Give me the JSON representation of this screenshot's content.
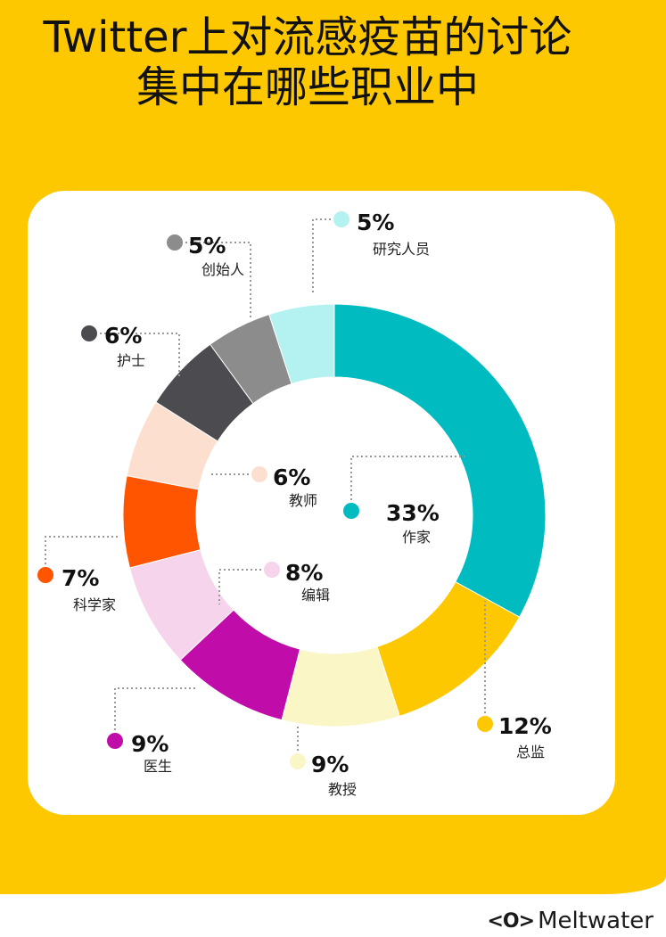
{
  "title": {
    "line1": "Twitter上对流感疫苗的讨论",
    "line2": "集中在哪些职业中"
  },
  "logo": {
    "mark": "<O>",
    "text": "Meltwater"
  },
  "chart_data": {
    "type": "donut",
    "title": "Twitter上对流感疫苗的讨论集中在哪些职业中",
    "unit": "%",
    "slices": [
      {
        "name": "作家",
        "value": 33,
        "label": "33%",
        "color": "#00bcc0"
      },
      {
        "name": "总监",
        "value": 12,
        "label": "12%",
        "color": "#fec800"
      },
      {
        "name": "教授",
        "value": 9,
        "label": "9%",
        "color": "#faf6c6"
      },
      {
        "name": "医生",
        "value": 9,
        "label": "9%",
        "color": "#c00ca8"
      },
      {
        "name": "编辑",
        "value": 8,
        "label": "8%",
        "color": "#f6d4ec"
      },
      {
        "name": "科学家",
        "value": 7,
        "label": "7%",
        "color": "#ff5400"
      },
      {
        "name": "教师",
        "value": 6,
        "label": "6%",
        "color": "#fddfd0"
      },
      {
        "name": "护士",
        "value": 6,
        "label": "6%",
        "color": "#4c4c50"
      },
      {
        "name": "创始人",
        "value": 5,
        "label": "5%",
        "color": "#8c8c8c"
      },
      {
        "name": "研究人员",
        "value": 5,
        "label": "5%",
        "color": "#b4f2f2"
      }
    ]
  }
}
